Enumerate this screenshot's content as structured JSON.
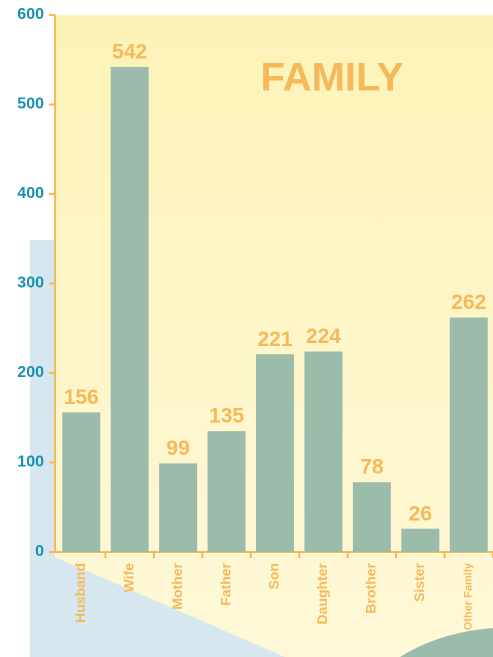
{
  "chart_data": {
    "type": "bar",
    "title": "FAMILY",
    "categories": [
      "Husband",
      "Wife",
      "Mother",
      "Father",
      "Son",
      "Daughter",
      "Brother",
      "Sister",
      "Other Family"
    ],
    "values": [
      156,
      542,
      99,
      135,
      221,
      224,
      78,
      26,
      262
    ],
    "color": "#9bbcaa",
    "ylim": [
      0,
      600
    ],
    "yticks": [
      0,
      100,
      200,
      300,
      400,
      500,
      600
    ]
  }
}
